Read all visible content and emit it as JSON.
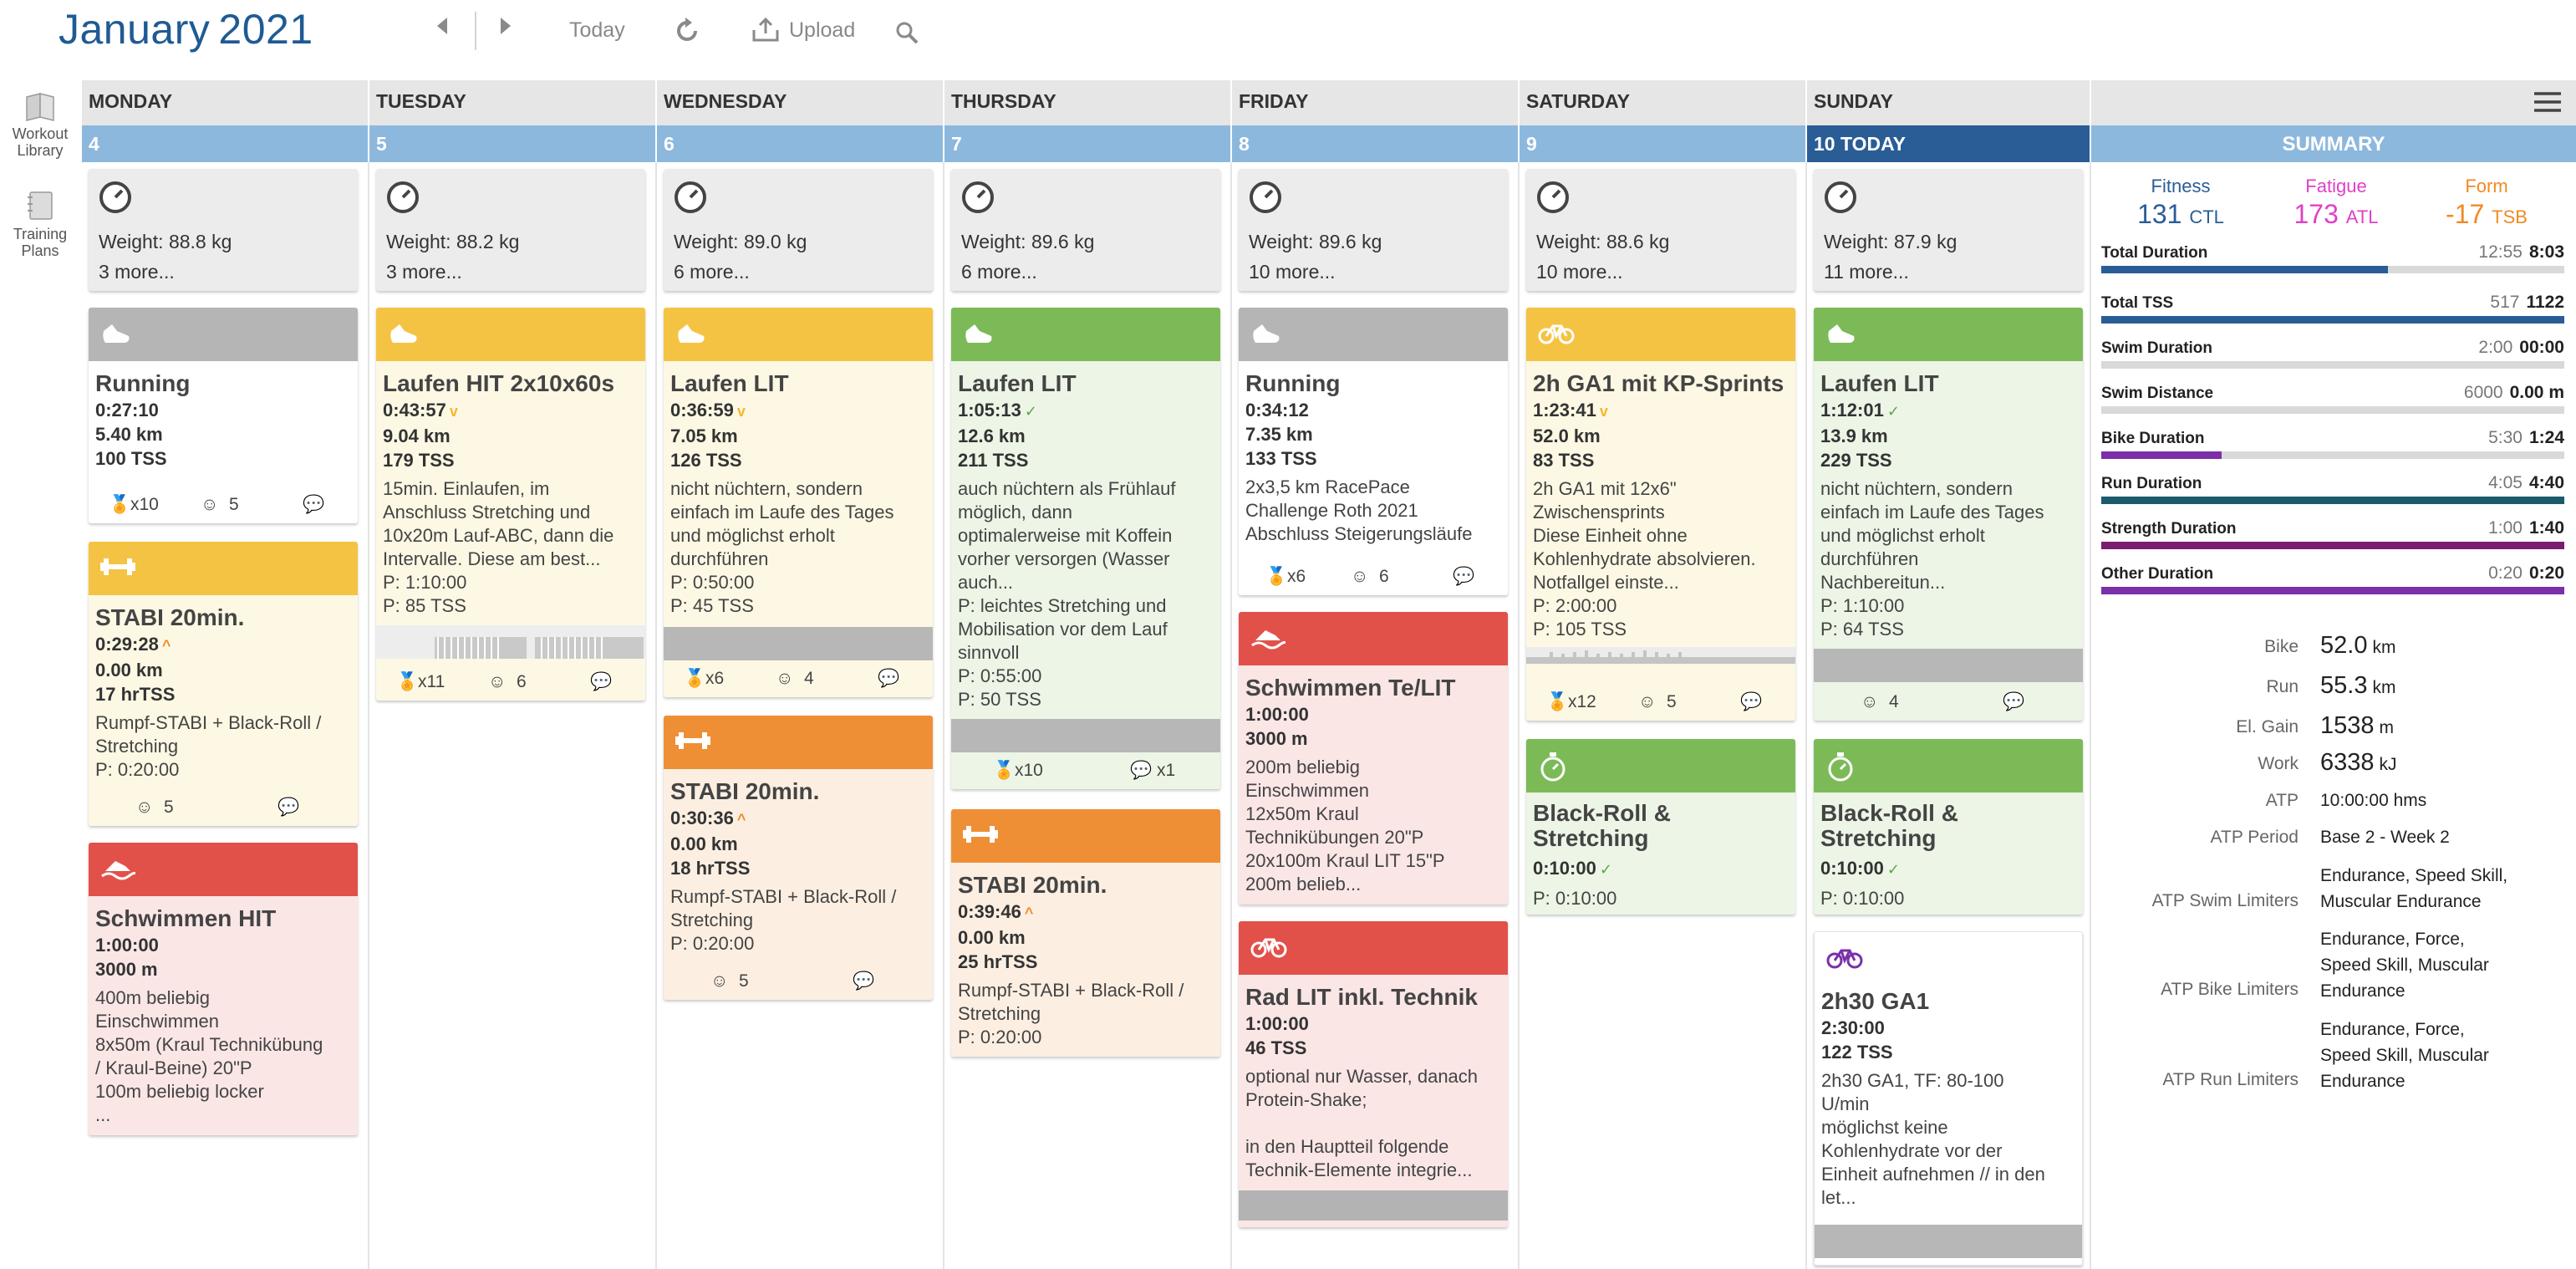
{
  "header": {
    "month": "January",
    "year": "2021",
    "today": "Today",
    "upload": "Upload"
  },
  "rail": {
    "library": [
      "Workout",
      "Library"
    ],
    "plans": [
      "Training",
      "Plans"
    ]
  },
  "days": [
    {
      "name": "MONDAY",
      "date": "4"
    },
    {
      "name": "TUESDAY",
      "date": "5"
    },
    {
      "name": "WEDNESDAY",
      "date": "6"
    },
    {
      "name": "THURSDAY",
      "date": "7"
    },
    {
      "name": "FRIDAY",
      "date": "8"
    },
    {
      "name": "SATURDAY",
      "date": "9"
    },
    {
      "name": "SUNDAY",
      "date": "10  TODAY"
    }
  ],
  "metrics": [
    {
      "weight": "Weight: 88.8 kg",
      "more": "3 more..."
    },
    {
      "weight": "Weight: 88.2 kg",
      "more": "3 more..."
    },
    {
      "weight": "Weight: 89.0 kg",
      "more": "6 more..."
    },
    {
      "weight": "Weight: 89.6 kg",
      "more": "6 more..."
    },
    {
      "weight": "Weight: 89.6 kg",
      "more": "10 more..."
    },
    {
      "weight": "Weight: 88.6 kg",
      "more": "10 more..."
    },
    {
      "weight": "Weight: 87.9 kg",
      "more": "11 more..."
    }
  ],
  "workouts": {
    "mon_run": {
      "title": "Running",
      "time": "0:27:10",
      "dist": "5.40 km",
      "tss": "100 TSS",
      "medals": "x10",
      "smile": "5"
    },
    "mon_stabi": {
      "title": "STABI 20min.",
      "time": "0:29:28",
      "dist": "0.00 km",
      "tss": "17 hrTSS",
      "desc": "Rumpf-STABI + Black-Roll /\nStretching\nP: 0:20:00",
      "smile": "5"
    },
    "mon_swim": {
      "title": "Schwimmen HIT",
      "time": "1:00:00",
      "dist": "3000 m",
      "desc": "400m beliebig\nEinschwimmen\n8x50m (Kraul Technikübung\n/ Kraul-Beine) 20\"P\n100m beliebig locker\n..."
    },
    "tue_run": {
      "title": "Laufen HIT 2x10x60s",
      "time": "0:43:57",
      "dist": "9.04 km",
      "tss": "179 TSS",
      "desc": "15min. Einlaufen, im\nAnschluss Stretching und\n10x20m Lauf-ABC, dann die\nIntervalle. Diese am best...\nP: 1:10:00\nP: 85 TSS",
      "medals": "x11",
      "smile": "6"
    },
    "wed_run": {
      "title": "Laufen LIT",
      "time": "0:36:59",
      "dist": "7.05 km",
      "tss": "126 TSS",
      "desc": "nicht nüchtern, sondern\neinfach im Laufe des Tages\nund möglichst erholt\ndurchführen\nP: 0:50:00\nP: 45 TSS",
      "medals": "x6",
      "smile": "4"
    },
    "wed_stabi": {
      "title": "STABI 20min.",
      "time": "0:30:36",
      "dist": "0.00 km",
      "tss": "18 hrTSS",
      "desc": "Rumpf-STABI + Black-Roll /\nStretching\nP: 0:20:00",
      "smile": "5"
    },
    "thu_run": {
      "title": "Laufen LIT",
      "time": "1:05:13",
      "dist": "12.6 km",
      "tss": "211 TSS",
      "desc": "auch nüchtern als Frühlauf\nmöglich, dann\noptimalerweise mit Koffein\nvorher versorgen (Wasser\nauch...\nP: leichtes Stretching und\nMobilisation vor dem Lauf\nsinnvoll\nP: 0:55:00\nP: 50 TSS",
      "medals": "x10",
      "comments": "x1"
    },
    "thu_stabi": {
      "title": "STABI 20min.",
      "time": "0:39:46",
      "dist": "0.00 km",
      "tss": "25 hrTSS",
      "desc": "Rumpf-STABI + Black-Roll /\nStretching\nP: 0:20:00"
    },
    "fri_run": {
      "title": "Running",
      "time": "0:34:12",
      "dist": "7.35 km",
      "tss": "133 TSS",
      "desc": "2x3,5 km RacePace\nChallenge Roth 2021\nAbschluss Steigerungsläufe",
      "medals": "x6",
      "smile": "6"
    },
    "fri_swim": {
      "title": "Schwimmen Te/LIT",
      "time": "1:00:00",
      "dist": "3000 m",
      "desc": "200m beliebig\nEinschwimmen\n12x50m Kraul\nTechnikübungen 20\"P\n20x100m Kraul LIT 15\"P\n200m belieb..."
    },
    "fri_bike": {
      "title": "Rad LIT inkl. Technik",
      "time": "1:00:00",
      "tss": "46 TSS",
      "desc": "optional nur Wasser, danach\nProtein-Shake;\n\nin den Hauptteil folgende\nTechnik-Elemente integrie..."
    },
    "sat_bike": {
      "title": "2h GA1 mit KP-Sprints",
      "time": "1:23:41",
      "dist": "52.0 km",
      "tss": "83 TSS",
      "desc": "2h GA1 mit 12x6\"\nZwischensprints\nDiese Einheit ohne\nKohlenhydrate absolvieren.\nNotfallgel einste...\nP: 2:00:00\nP: 105 TSS",
      "medals": "x12",
      "smile": "5"
    },
    "sat_roll": {
      "title": "Black-Roll &\nStretching",
      "time": "0:10:00",
      "desc": "P: 0:10:00"
    },
    "sun_run": {
      "title": "Laufen LIT",
      "time": "1:12:01",
      "dist": "13.9 km",
      "tss": "229 TSS",
      "desc": "nicht nüchtern, sondern\neinfach im Laufe des Tages\nund möglichst erholt\ndurchführen\nNachbereitun...\nP: 1:10:00\nP: 64 TSS",
      "smile": "4"
    },
    "sun_roll": {
      "title": "Black-Roll &\nStretching",
      "time": "0:10:00",
      "desc": "P: 0:10:00"
    },
    "sun_bike": {
      "title": "2h30 GA1",
      "time": "2:30:00",
      "tss": "122 TSS",
      "desc": "2h30 GA1, TF: 80-100\nU/min\nmöglichst keine\nKohlenhydrate vor der\nEinheit aufnehmen // in den\nlet..."
    }
  },
  "summary": {
    "title": "SUMMARY",
    "fitness": {
      "label": "Fitness",
      "value": "131",
      "unit": "CTL",
      "color": "#2a5d96"
    },
    "fatigue": {
      "label": "Fatigue",
      "value": "173",
      "unit": "ATL",
      "color": "#e040c8"
    },
    "form": {
      "label": "Form",
      "value": "-17",
      "unit": "TSB",
      "color": "#f08a24"
    },
    "rows": [
      {
        "name": "Total Duration",
        "planned": "12:55",
        "actual": "8:03",
        "fraction": 0.62,
        "color": "#2a5d96"
      },
      {
        "name": "Total TSS",
        "planned": "517",
        "actual": "1122",
        "fraction": 1.0,
        "color": "#2a5d96"
      },
      {
        "name": "Swim Duration",
        "planned": "2:00",
        "actual": "00:00",
        "fraction": 0.0,
        "color": "#2a9bd8"
      },
      {
        "name": "Swim Distance",
        "planned": "6000",
        "actual": "0.00 m",
        "fraction": 0.0,
        "color": "#2a9bd8"
      },
      {
        "name": "Bike Duration",
        "planned": "5:30",
        "actual": "1:24",
        "fraction": 0.26,
        "color": "#7b2fa8"
      },
      {
        "name": "Run Duration",
        "planned": "4:05",
        "actual": "4:40",
        "fraction": 1.0,
        "color": "#1e5a6e"
      },
      {
        "name": "Strength Duration",
        "planned": "1:00",
        "actual": "1:40",
        "fraction": 1.0,
        "color": "#7a1d72"
      },
      {
        "name": "Other Duration",
        "planned": "0:20",
        "actual": "0:20",
        "fraction": 1.0,
        "color": "#7b2fa8"
      }
    ],
    "details": [
      {
        "label": "Bike",
        "value": "52.0",
        "unit": "km"
      },
      {
        "label": "Run",
        "value": "55.3",
        "unit": "km"
      },
      {
        "label": "El. Gain",
        "value": "1538",
        "unit": "m"
      },
      {
        "label": "Work",
        "value": "6338",
        "unit": "kJ"
      },
      {
        "label": "ATP",
        "value": "10:00:00 hms"
      },
      {
        "label": "ATP Period",
        "value": "Base 2 - Week 2"
      },
      {
        "label": "ATP Swim Limiters",
        "value": "Endurance, Speed Skill,\nMuscular Endurance"
      },
      {
        "label": "ATP Bike Limiters",
        "value": "Endurance, Force,\nSpeed Skill, Muscular\nEndurance"
      },
      {
        "label": "ATP Run Limiters",
        "value": "Endurance, Force,\nSpeed Skill, Muscular\nEndurance"
      }
    ]
  }
}
